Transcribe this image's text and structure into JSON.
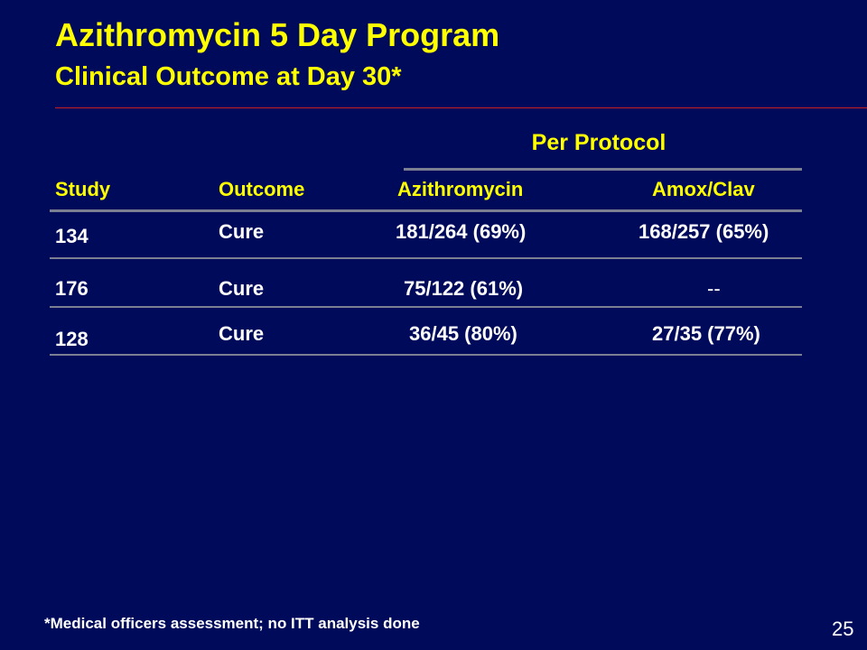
{
  "slide": {
    "title": "Azithromycin 5 Day Program",
    "subtitle": "Clinical Outcome at Day 30*",
    "footnote": "*Medical officers assessment; no ITT analysis done",
    "page_number": "25",
    "colors": {
      "background": "#000a5a",
      "title": "#ffff00",
      "text": "#ffffff",
      "title_rule": "#c8201e",
      "table_rules": "#7a8092"
    }
  },
  "table": {
    "group_header": "Per Protocol",
    "columns": [
      "Study",
      "Outcome",
      "Azithromycin",
      "Amox/Clav"
    ],
    "rows": [
      [
        "134",
        "Cure",
        "181/264 (69%)",
        "168/257 (65%)"
      ],
      [
        "176",
        "Cure",
        "75/122 (61%)",
        "--"
      ],
      [
        "128",
        "Cure",
        "36/45 (80%)",
        "27/35 (77%)"
      ]
    ]
  }
}
